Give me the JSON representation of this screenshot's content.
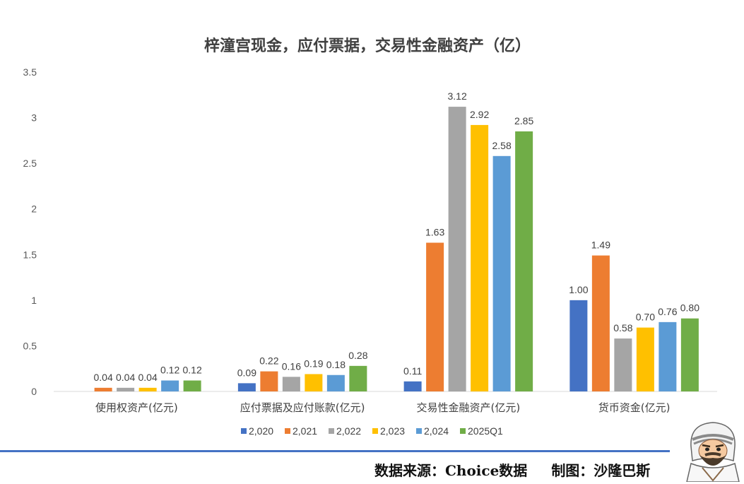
{
  "chart_data": {
    "type": "bar",
    "title": "梓潼宫现金，应付票据，交易性金融资产（亿）",
    "categories": [
      "使用权资产(亿元)",
      "应付票据及应付账款(亿元)",
      "交易性金融资产(亿元)",
      "货币资金(亿元)"
    ],
    "series": [
      {
        "name": "2,020",
        "color": "#4472C4",
        "values": [
          null,
          0.09,
          0.11,
          1.0
        ],
        "labels": [
          "",
          "0.09",
          "0.11",
          "1.00"
        ]
      },
      {
        "name": "2,021",
        "color": "#ED7D31",
        "values": [
          0.04,
          0.22,
          1.63,
          1.49
        ],
        "labels": [
          "0.04",
          "0.22",
          "1.63",
          "1.49"
        ]
      },
      {
        "name": "2,022",
        "color": "#A5A5A5",
        "values": [
          0.04,
          0.16,
          3.12,
          0.58
        ],
        "labels": [
          "0.04",
          "0.16",
          "3.12",
          "0.58"
        ]
      },
      {
        "name": "2,023",
        "color": "#FFC000",
        "values": [
          0.04,
          0.19,
          2.92,
          0.7
        ],
        "labels": [
          "0.04",
          "0.19",
          "2.92",
          "0.70"
        ]
      },
      {
        "name": "2,024",
        "color": "#5B9BD5",
        "values": [
          0.12,
          0.18,
          2.58,
          0.76
        ],
        "labels": [
          "0.12",
          "0.18",
          "2.58",
          "0.76"
        ]
      },
      {
        "name": "2025Q1",
        "color": "#70AD47",
        "values": [
          0.12,
          0.28,
          2.85,
          0.8
        ],
        "labels": [
          "0.12",
          "0.28",
          "2.85",
          "0.80"
        ]
      }
    ],
    "yticks": [
      "0",
      "0.5",
      "1",
      "1.5",
      "2",
      "2.5",
      "3",
      "3.5"
    ],
    "ylim": [
      0,
      3.5
    ],
    "grid": false,
    "legend": "bottom"
  },
  "footer": {
    "source": "数据来源：Choice数据",
    "credit": "制图：沙隆巴斯"
  },
  "colors": {
    "footer_line": "#4472C4"
  },
  "icons": {
    "mascot": "bearded-man-mascot-icon"
  }
}
